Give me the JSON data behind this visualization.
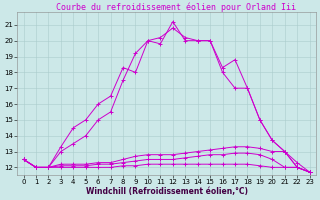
{
  "title": "Courbe du refroidissement éolien pour Orland Iii",
  "xlabel": "Windchill (Refroidissement éolien,°C)",
  "background_color": "#cce8e8",
  "grid_color": "#aacccc",
  "line_color": "#cc00cc",
  "xlim": [
    -0.5,
    23.5
  ],
  "ylim": [
    11.5,
    21.8
  ],
  "yticks": [
    12,
    13,
    14,
    15,
    16,
    17,
    18,
    19,
    20,
    21
  ],
  "xticks": [
    0,
    1,
    2,
    3,
    4,
    5,
    6,
    7,
    8,
    9,
    10,
    11,
    12,
    13,
    14,
    15,
    16,
    17,
    18,
    19,
    20,
    21,
    22,
    23
  ],
  "lines": [
    {
      "x": [
        0,
        1,
        2,
        3,
        4,
        5,
        6,
        7,
        8,
        9,
        10,
        11,
        12,
        13,
        14,
        15,
        16,
        17,
        18,
        19,
        20,
        21,
        22,
        23
      ],
      "y": [
        12.5,
        12.0,
        12.0,
        13.3,
        14.5,
        15.0,
        16.0,
        16.5,
        18.3,
        18.0,
        20.0,
        19.8,
        21.2,
        20.0,
        20.0,
        20.0,
        18.3,
        18.8,
        17.0,
        15.0,
        13.7,
        13.0,
        12.0,
        11.7
      ]
    },
    {
      "x": [
        0,
        1,
        2,
        3,
        4,
        5,
        6,
        7,
        8,
        9,
        10,
        11,
        12,
        13,
        14,
        15,
        16,
        17,
        18,
        19,
        20,
        21,
        22,
        23
      ],
      "y": [
        12.5,
        12.0,
        12.0,
        13.0,
        13.5,
        14.0,
        15.0,
        15.5,
        17.5,
        19.2,
        20.0,
        20.2,
        20.8,
        20.2,
        20.0,
        20.0,
        18.0,
        17.0,
        17.0,
        15.0,
        13.7,
        13.0,
        12.0,
        11.7
      ]
    },
    {
      "x": [
        0,
        1,
        2,
        3,
        4,
        5,
        6,
        7,
        8,
        9,
        10,
        11,
        12,
        13,
        14,
        15,
        16,
        17,
        18,
        19,
        20,
        21,
        22,
        23
      ],
      "y": [
        12.5,
        12.0,
        12.0,
        12.2,
        12.2,
        12.2,
        12.3,
        12.3,
        12.5,
        12.7,
        12.8,
        12.8,
        12.8,
        12.9,
        13.0,
        13.1,
        13.2,
        13.3,
        13.3,
        13.2,
        13.0,
        13.0,
        12.3,
        11.7
      ]
    },
    {
      "x": [
        0,
        1,
        2,
        3,
        4,
        5,
        6,
        7,
        8,
        9,
        10,
        11,
        12,
        13,
        14,
        15,
        16,
        17,
        18,
        19,
        20,
        21,
        22,
        23
      ],
      "y": [
        12.5,
        12.0,
        12.0,
        12.1,
        12.1,
        12.1,
        12.2,
        12.2,
        12.3,
        12.4,
        12.5,
        12.5,
        12.5,
        12.6,
        12.7,
        12.8,
        12.8,
        12.9,
        12.9,
        12.8,
        12.5,
        12.0,
        12.0,
        11.7
      ]
    },
    {
      "x": [
        0,
        1,
        2,
        3,
        4,
        5,
        6,
        7,
        8,
        9,
        10,
        11,
        12,
        13,
        14,
        15,
        16,
        17,
        18,
        19,
        20,
        21,
        22,
        23
      ],
      "y": [
        12.5,
        12.0,
        12.0,
        12.0,
        12.0,
        12.0,
        12.0,
        12.0,
        12.1,
        12.1,
        12.2,
        12.2,
        12.2,
        12.2,
        12.2,
        12.2,
        12.2,
        12.2,
        12.2,
        12.1,
        12.0,
        12.0,
        12.0,
        11.7
      ]
    }
  ],
  "title_fontsize": 6.0,
  "axis_fontsize": 5.5,
  "tick_fontsize": 5.0
}
